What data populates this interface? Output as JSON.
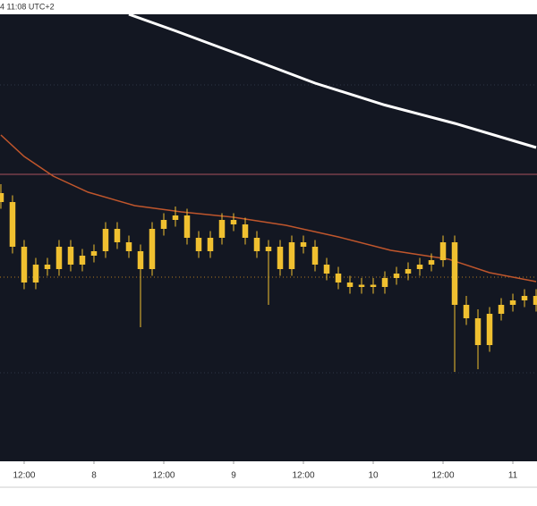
{
  "header": {
    "text": "4 11:08 UTC+2"
  },
  "chart_data": {
    "type": "candlestick",
    "color": "#f0c030",
    "xlim": [
      7.85,
      100.15
    ],
    "ylim": [
      0,
      100
    ],
    "xticks": [
      {
        "value": 12,
        "label": "12:00"
      },
      {
        "value": 24,
        "label": "8"
      },
      {
        "value": 36,
        "label": "12:00"
      },
      {
        "value": 48,
        "label": "9"
      },
      {
        "value": 60,
        "label": "12:00"
      },
      {
        "value": 72,
        "label": "10"
      },
      {
        "value": 84,
        "label": "12:00"
      },
      {
        "value": 96,
        "label": "11"
      }
    ],
    "x": [
      8,
      10,
      12,
      14,
      16,
      18,
      20,
      22,
      24,
      26,
      28,
      30,
      32,
      34,
      36,
      38,
      40,
      42,
      44,
      46,
      48,
      50,
      52,
      54,
      56,
      58,
      60,
      62,
      64,
      66,
      68,
      70,
      72,
      74,
      76,
      78,
      80,
      82,
      84,
      86,
      88,
      90,
      92,
      94,
      96,
      98,
      100
    ],
    "open": [
      60,
      58,
      48,
      40,
      44,
      43,
      48,
      44,
      46,
      47,
      52,
      49,
      47,
      43,
      52,
      54,
      55,
      50,
      47,
      50,
      54,
      53,
      50,
      47,
      48,
      43,
      49,
      48,
      44,
      42,
      40,
      39,
      39.5,
      39,
      41,
      42,
      43,
      44,
      45,
      49,
      35,
      32,
      26,
      33,
      35,
      36,
      37
    ],
    "high": [
      62,
      59.5,
      49.5,
      45.5,
      45.5,
      49.5,
      49.5,
      47.5,
      48.5,
      53.5,
      53.5,
      50.5,
      48.5,
      53.5,
      55.5,
      57,
      56.5,
      51.5,
      51.5,
      55.5,
      55.5,
      54.5,
      51.5,
      49.5,
      49.5,
      50.5,
      50.5,
      49.5,
      45.5,
      43.5,
      41.5,
      41,
      41,
      42.5,
      43.5,
      44.5,
      45.5,
      46.5,
      50.5,
      50.5,
      37,
      34,
      34.5,
      36.5,
      37.5,
      38.5,
      38.5
    ],
    "low": [
      56.5,
      46.5,
      38.5,
      38.5,
      41.5,
      41.5,
      42.5,
      42.5,
      44.5,
      45.5,
      47.5,
      45.5,
      30,
      41.5,
      50.5,
      52.5,
      48.5,
      45.5,
      45.5,
      48.5,
      51.5,
      48.5,
      45.5,
      35,
      41.5,
      41.5,
      46.5,
      42.5,
      40.5,
      38.5,
      37.5,
      37.5,
      37.5,
      37.5,
      39.5,
      40.5,
      41.5,
      42.5,
      43.5,
      20,
      30.5,
      20.6,
      24.5,
      31.5,
      33.5,
      34.5,
      33.5
    ],
    "close": [
      58,
      48,
      40,
      44,
      43,
      48,
      44,
      46,
      47,
      52,
      49,
      47,
      43,
      52,
      54,
      55,
      50,
      47,
      50,
      54,
      53,
      50,
      47,
      48,
      43,
      49,
      48,
      44,
      42,
      40,
      39,
      39.5,
      39,
      41,
      42,
      43,
      44,
      45,
      49,
      35,
      32,
      26,
      33,
      35,
      36,
      37,
      35
    ],
    "lines": [
      {
        "color": "#ffffff",
        "x": [
          30,
          38,
          50,
          62,
          74,
          86,
          100
        ],
        "values": [
          100,
          96.3,
          90.5,
          84.6,
          79.7,
          75.6,
          70.2
        ]
      },
      {
        "color": "#c0562c",
        "x": [
          8,
          12,
          17,
          23,
          31,
          39,
          48,
          57,
          66,
          75,
          85,
          92,
          100
        ],
        "values": [
          73,
          68.2,
          63.8,
          60.2,
          57.2,
          55.8,
          54.6,
          52.8,
          50.2,
          47.2,
          45.2,
          42.2,
          40.2
        ]
      }
    ],
    "levels": [
      {
        "value": 84.2,
        "color": "#2e3445",
        "dash": true
      },
      {
        "value": 64.2,
        "color": "#a8505e",
        "dash": false
      },
      {
        "value": 41.2,
        "color": "#b07a20",
        "dash": true
      },
      {
        "value": 19.8,
        "color": "#2e3445",
        "dash": true
      }
    ]
  }
}
